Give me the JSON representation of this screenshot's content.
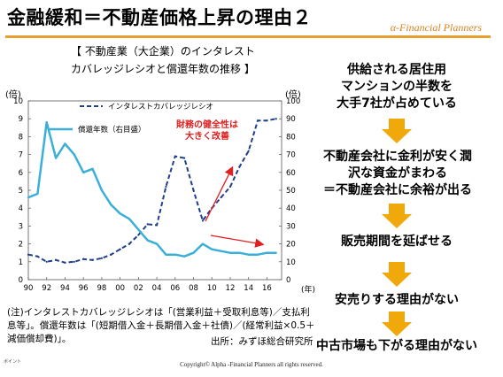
{
  "slide": {
    "title": "金融緩和＝不動産価格上昇の理由２",
    "brand": "α-Financial Planners",
    "footer": "Copyright© Alpha -Financial Planners all rights reserved.",
    "footer_left": "ポイント"
  },
  "chart_heading": {
    "line1": "【 不動産業（大企業）のインタレスト",
    "line2": "カバレッジレシオと償還年数の推移 】"
  },
  "chart_data": {
    "type": "line",
    "left_unit": "(倍)",
    "right_unit": "(倍)",
    "x_unit": "(年)",
    "left_ylim": [
      0,
      10
    ],
    "right_ylim": [
      0,
      100
    ],
    "left_ticks": [
      "0",
      "1",
      "2",
      "3",
      "4",
      "5",
      "6",
      "7",
      "8",
      "9",
      "10"
    ],
    "right_ticks": [
      "0",
      "10",
      "20",
      "30",
      "40",
      "50",
      "60",
      "70",
      "80",
      "90",
      "100"
    ],
    "x_ticks": [
      "90",
      "92",
      "94",
      "96",
      "98",
      "00",
      "02",
      "04",
      "06",
      "08",
      "10",
      "12",
      "14",
      "16"
    ],
    "series": [
      {
        "name": "インタレストカバレッジレシオ",
        "axis": "left",
        "style": "dashed",
        "color": "#1f3f8a",
        "x": [
          1990,
          1991,
          1992,
          1993,
          1994,
          1995,
          1996,
          1997,
          1998,
          1999,
          2000,
          2001,
          2002,
          2003,
          2004,
          2005,
          2006,
          2007,
          2008,
          2009,
          2010,
          2011,
          2012,
          2013,
          2014,
          2015,
          2016,
          2017
        ],
        "values": [
          1.4,
          1.3,
          1.0,
          1.1,
          0.95,
          1.0,
          1.15,
          1.1,
          1.2,
          1.4,
          1.7,
          2.0,
          2.5,
          3.1,
          3.05,
          5.2,
          6.9,
          6.8,
          5.0,
          3.3,
          4.0,
          4.6,
          5.2,
          6.3,
          7.2,
          8.9,
          8.9,
          9.0
        ]
      },
      {
        "name": "償還年数（右目盛）",
        "axis": "right",
        "style": "solid",
        "color": "#3ab0d8",
        "x": [
          1990,
          1991,
          1992,
          1993,
          1994,
          1995,
          1996,
          1997,
          1998,
          1999,
          2000,
          2001,
          2002,
          2003,
          2004,
          2005,
          2006,
          2007,
          2008,
          2009,
          2010,
          2011,
          2012,
          2013,
          2014,
          2015,
          2016,
          2017
        ],
        "values": [
          46,
          48,
          88,
          68,
          76,
          70,
          60,
          62,
          50,
          42,
          37,
          34,
          28,
          22,
          20,
          14,
          14,
          13,
          15,
          20,
          17,
          16,
          15,
          15,
          14,
          14,
          15,
          15
        ]
      }
    ],
    "annotations": {
      "improvement": "財務の健全性は\n大きく改善"
    }
  },
  "notes": {
    "text": "(注)インタレストカバレッジレシオは「(営業利益＋受取利息等)／支払利息等」。償還年数は「(短期借入金＋長期借入金＋社債)／(経常利益×0.5＋減価償却費)」。",
    "source": "出所：みずほ総合研究所"
  },
  "flow": {
    "step1": "供給される居住用\nマンションの半数を\n大手7社が占めている",
    "step2": "不動産会社に金利が安く潤\n沢な資金がまわる\n＝不動産会社に余裕が出る",
    "step3": "販売期間を延ばせる",
    "step4": "安売りする理由がない",
    "step5": "中古市場も下がる理由がない"
  },
  "colors": {
    "accent": "#e8a030",
    "arrow": "#f0a80a",
    "annotation": "#e02020"
  }
}
